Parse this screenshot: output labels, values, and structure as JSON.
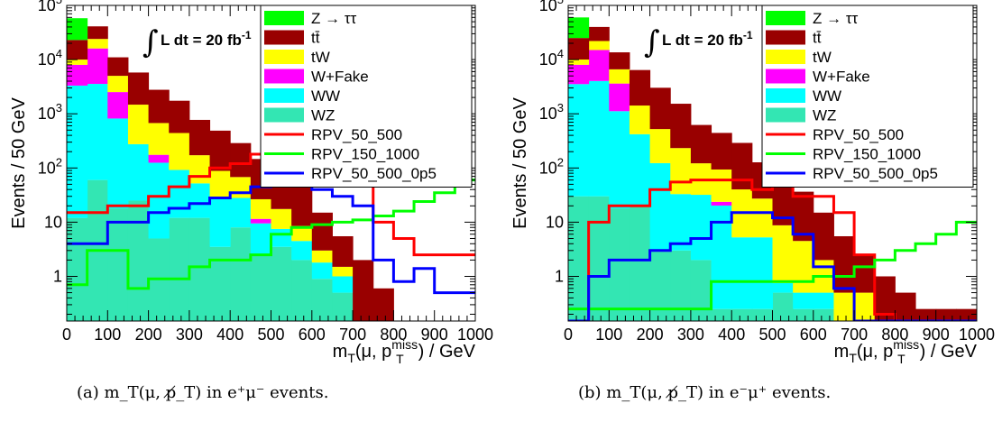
{
  "captions": [
    "(a) m_T(μ, p̸_T) in e⁺μ⁻ events.",
    "(b) m_T(μ, p̸_T) in e⁻μ⁺ events."
  ],
  "chart_data": [
    {
      "type": "bar",
      "stacked": true,
      "log_y": true,
      "ylabel": "Events / 50 GeV",
      "xlabel": "m_T(μ, p_T^miss) / GeV",
      "annotation": "∫ L dt = 20 fb⁻¹",
      "xlim": [
        0,
        1000
      ],
      "ylim": [
        0.15,
        100000
      ],
      "bin_width": 50,
      "x_ticks": [
        "0",
        "100",
        "200",
        "300",
        "400",
        "500",
        "600",
        "700",
        "800",
        "900",
        "1000"
      ],
      "y_ticks": [
        "1",
        "10",
        "10²",
        "10³",
        "10⁴",
        "10⁵"
      ],
      "legend_position": "top-right",
      "stack": [
        {
          "name": "WZ",
          "color": "#33e6b3",
          "values": [
            12,
            60,
            18,
            25,
            5,
            12,
            12,
            3.5,
            8,
            2.5,
            3.5,
            2,
            0.9,
            0.5,
            0,
            0,
            0,
            0,
            0,
            0
          ]
        },
        {
          "name": "WW",
          "color": "#00ffff",
          "values": [
            3300,
            3500,
            800,
            250,
            120,
            80,
            40,
            25,
            20,
            7,
            4,
            2.5,
            0.9,
            0.5,
            0,
            0,
            0,
            0,
            0,
            0
          ]
        },
        {
          "name": "W+Fake",
          "color": "#ff00ff",
          "values": [
            4700,
            12500,
            1700,
            0,
            50,
            0,
            0,
            0,
            0,
            2,
            0,
            0,
            0,
            0,
            0,
            0,
            0,
            0,
            0,
            0
          ]
        },
        {
          "name": "tW",
          "color": "#ffff00",
          "values": [
            2000,
            8000,
            2500,
            1200,
            500,
            350,
            120,
            60,
            40,
            15,
            10,
            4,
            1.2,
            0.5,
            0,
            0,
            0,
            0,
            0,
            0
          ]
        },
        {
          "name": "tt̄",
          "color": "#990000",
          "values": [
            13000,
            17000,
            6000,
            4300,
            2100,
            1300,
            600,
            400,
            220,
            120,
            50,
            40,
            12,
            4,
            2,
            0.6,
            0,
            0,
            0,
            0
          ]
        },
        {
          "name": "Z → ττ",
          "color": "#00ff00",
          "values": [
            35000,
            0,
            0,
            0,
            0,
            0,
            0,
            0,
            0,
            0,
            0,
            0,
            0,
            0,
            0,
            0,
            0,
            0,
            0,
            0
          ]
        }
      ],
      "lines": [
        {
          "name": "RPV_50_500",
          "color": "#ff0000",
          "values": [
            15,
            15,
            20,
            20,
            30,
            45,
            70,
            100,
            120,
            180,
            200,
            230,
            250,
            200,
            150,
            10,
            5,
            2.5,
            2.5,
            2.5
          ]
        },
        {
          "name": "RPV_150_1000",
          "color": "#00ff00",
          "values": [
            0.7,
            3,
            3,
            0.6,
            0.9,
            0.9,
            1.5,
            2,
            2,
            2.5,
            6,
            8,
            9,
            10,
            11,
            13,
            16,
            24,
            35,
            60
          ]
        },
        {
          "name": "RPV_50_500_0p5",
          "color": "#0000ff",
          "values": [
            4,
            4,
            10,
            10,
            15,
            18,
            22,
            28,
            35,
            45,
            60,
            65,
            40,
            30,
            20,
            2,
            0.8,
            1.4,
            0.5,
            0.5
          ]
        }
      ]
    },
    {
      "type": "bar",
      "stacked": true,
      "log_y": true,
      "ylabel": "Events / 50 GeV",
      "xlabel": "m_T(μ, p_T^miss) / GeV",
      "annotation": "∫ L dt = 20 fb⁻¹",
      "xlim": [
        0,
        1000
      ],
      "ylim": [
        0.15,
        100000
      ],
      "bin_width": 50,
      "x_ticks": [
        "0",
        "100",
        "200",
        "300",
        "400",
        "500",
        "600",
        "700",
        "800",
        "900",
        "1000"
      ],
      "y_ticks": [
        "1",
        "10",
        "10²",
        "10³",
        "10⁴",
        "10⁵"
      ],
      "legend_position": "top-right",
      "stack": [
        {
          "name": "WZ",
          "color": "#33e6b3",
          "values": [
            30,
            30,
            18,
            20,
            3,
            3,
            2,
            0.25,
            0.25,
            0.25,
            0.5,
            0.25,
            0.25,
            0,
            0,
            0,
            0,
            0,
            0,
            0
          ]
        },
        {
          "name": "WW",
          "color": "#00ffff",
          "values": [
            3500,
            4000,
            1100,
            400,
            120,
            30,
            30,
            20,
            5,
            5,
            0.25,
            0.25,
            0.25,
            0,
            0,
            0,
            0,
            0,
            0,
            0
          ]
        },
        {
          "name": "W+Fake",
          "color": "#ff00ff",
          "values": [
            4500,
            11000,
            2500,
            0,
            0,
            0,
            0,
            3.5,
            0,
            0,
            0,
            0,
            0,
            0,
            0,
            0,
            0,
            0,
            0,
            0
          ]
        },
        {
          "name": "tW",
          "color": "#ffff00",
          "values": [
            2000,
            7000,
            3000,
            1000,
            400,
            200,
            90,
            70,
            35,
            22,
            8,
            4,
            1.5,
            0.5,
            0.5,
            0,
            0,
            0,
            0,
            0
          ]
        },
        {
          "name": "tt̄",
          "color": "#990000",
          "values": [
            15000,
            18000,
            7000,
            5000,
            2500,
            1300,
            500,
            350,
            250,
            100,
            60,
            32,
            13,
            5,
            2,
            1,
            0.5,
            0.25,
            0.25,
            0.25
          ]
        },
        {
          "name": "Z → ττ",
          "color": "#00ff00",
          "values": [
            35000,
            0,
            0,
            0,
            0,
            0,
            0,
            0,
            0,
            0,
            0,
            0,
            0,
            0,
            0,
            0,
            0,
            0,
            0,
            0
          ]
        }
      ],
      "lines": [
        {
          "name": "RPV_50_500",
          "color": "#ff0000",
          "values": [
            0.15,
            10,
            20,
            20,
            40,
            55,
            60,
            60,
            60,
            40,
            60,
            30,
            30,
            15,
            2.5,
            0.2,
            0.15,
            0.15,
            0.15,
            0.15
          ]
        },
        {
          "name": "RPV_150_1000",
          "color": "#00ff00",
          "values": [
            0.25,
            0.25,
            0.25,
            0.25,
            0.25,
            0.25,
            0.25,
            0.8,
            0.8,
            0.8,
            0.8,
            0.8,
            1,
            1,
            1.5,
            2,
            3,
            4,
            6,
            10
          ]
        },
        {
          "name": "RPV_50_500_0p5",
          "color": "#0000ff",
          "values": [
            0.15,
            1,
            2,
            2,
            3,
            4,
            5,
            10,
            15,
            15,
            12,
            6,
            1.5,
            0.6,
            0.15,
            0.15,
            0.15,
            0.15,
            0.15,
            0.15
          ]
        }
      ]
    }
  ]
}
